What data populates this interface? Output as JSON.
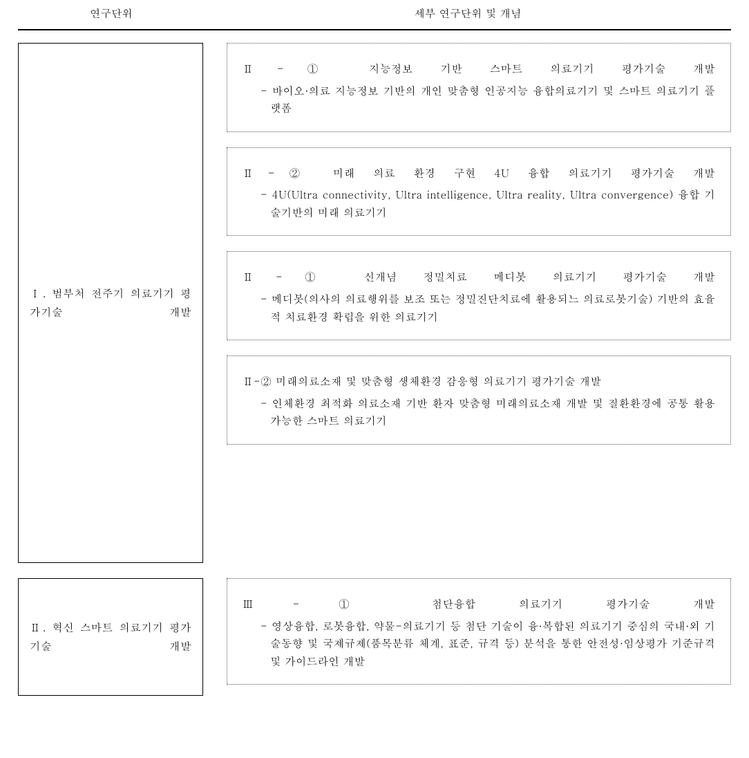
{
  "headers": {
    "left": "연구단위",
    "right": "세부 연구단위 및 개념"
  },
  "sections": [
    {
      "class": "sec1",
      "unit": "Ⅰ. 범부처 전주기 의료기기 평가기술 개발",
      "details": [
        {
          "title": "Ⅱ-① 지능정보 기반 스마트 의료기기 평가기술 개발",
          "titleJustify": true,
          "desc": "- 바이오·의료 지능정보 기반의 개인 맞춤형 인공지능 융합의료기기 및 스마트 의료기기 플랫폼"
        },
        {
          "title": "Ⅱ-② 미래 의료 환경 구현 4U 융합 의료기기 평가기술 개발",
          "titleJustify": true,
          "desc": "- 4U(Ultra connectivity, Ultra intelligence, Ultra reality, Ultra convergence) 융합 기술기반의 미래 의료기기"
        },
        {
          "title": "Ⅱ-① 신개념 정밀치료 메디봇 의료기기 평가기술 개발",
          "titleJustify": true,
          "desc": "- 메디봇(의사의 의료행위를 보조 또는 정밀진단치료에 활용되느 의료로봇기술) 기반의 효율적 치료환경 확립을 위한 의료기기"
        },
        {
          "title": "Ⅱ-② 미래의료소재 및 맞춤형 생체환경 감응형 의료기기 평가기술 개발",
          "titleJustify": false,
          "desc": "- 인체환경 최적화 의료소재 기반 환자 맞춤형 미래의료소재 개발 및 질환환경에 공통 활용 가능한 스마트 의료기기"
        }
      ]
    },
    {
      "class": "sec2",
      "unit": "Ⅱ. 혁신 스마트 의료기기 평가기술 개발",
      "details": [
        {
          "title": "Ⅲ-① 첨단융합 의료기기 평가기술 개발",
          "titleJustify": true,
          "desc": "- 영상융합, 로봇융합, 약물-의료기기 등 첨단 기술이 융·복합된 의료기기 중심의 국내·외 기술동향 및 국제규제(품목분류 체계, 표준, 규격 등) 분석을 통한 안전성·임상평가 기준규격 및 가이드라인 개발"
        }
      ]
    }
  ]
}
